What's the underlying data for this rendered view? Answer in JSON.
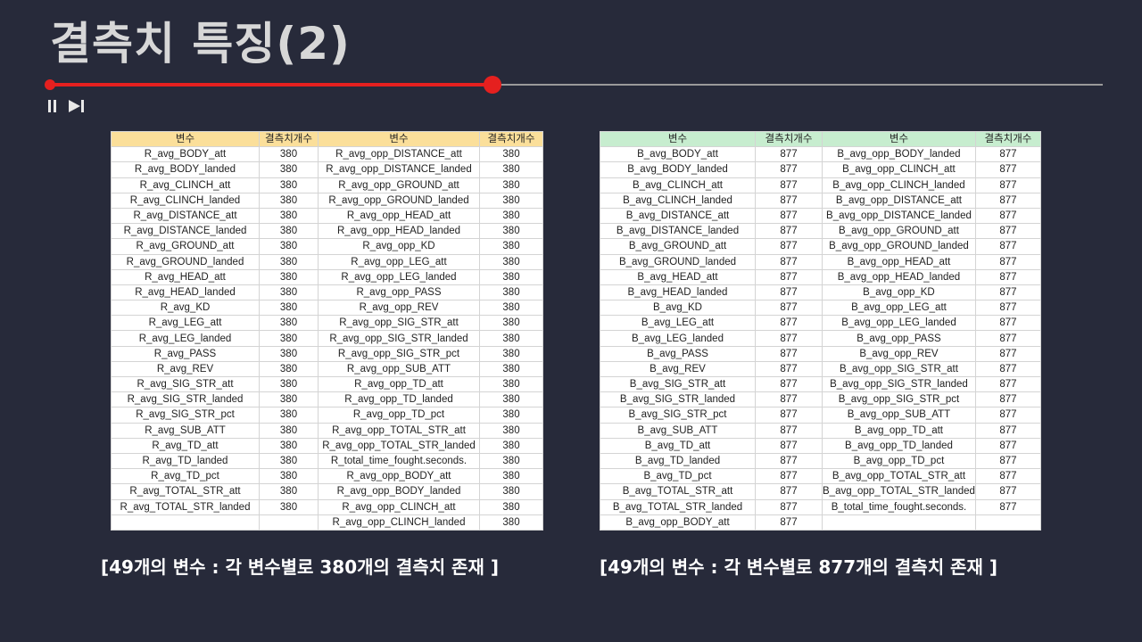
{
  "slide": {
    "title": "결측치 특징(2)",
    "playback_progress_pct": 42
  },
  "table_left": {
    "headers": [
      "변수",
      "결측치개수",
      "변수",
      "결측치개수"
    ],
    "rows": [
      [
        "R_avg_BODY_att",
        "380",
        "R_avg_opp_DISTANCE_att",
        "380"
      ],
      [
        "R_avg_BODY_landed",
        "380",
        "R_avg_opp_DISTANCE_landed",
        "380"
      ],
      [
        "R_avg_CLINCH_att",
        "380",
        "R_avg_opp_GROUND_att",
        "380"
      ],
      [
        "R_avg_CLINCH_landed",
        "380",
        "R_avg_opp_GROUND_landed",
        "380"
      ],
      [
        "R_avg_DISTANCE_att",
        "380",
        "R_avg_opp_HEAD_att",
        "380"
      ],
      [
        "R_avg_DISTANCE_landed",
        "380",
        "R_avg_opp_HEAD_landed",
        "380"
      ],
      [
        "R_avg_GROUND_att",
        "380",
        "R_avg_opp_KD",
        "380"
      ],
      [
        "R_avg_GROUND_landed",
        "380",
        "R_avg_opp_LEG_att",
        "380"
      ],
      [
        "R_avg_HEAD_att",
        "380",
        "R_avg_opp_LEG_landed",
        "380"
      ],
      [
        "R_avg_HEAD_landed",
        "380",
        "R_avg_opp_PASS",
        "380"
      ],
      [
        "R_avg_KD",
        "380",
        "R_avg_opp_REV",
        "380"
      ],
      [
        "R_avg_LEG_att",
        "380",
        "R_avg_opp_SIG_STR_att",
        "380"
      ],
      [
        "R_avg_LEG_landed",
        "380",
        "R_avg_opp_SIG_STR_landed",
        "380"
      ],
      [
        "R_avg_PASS",
        "380",
        "R_avg_opp_SIG_STR_pct",
        "380"
      ],
      [
        "R_avg_REV",
        "380",
        "R_avg_opp_SUB_ATT",
        "380"
      ],
      [
        "R_avg_SIG_STR_att",
        "380",
        "R_avg_opp_TD_att",
        "380"
      ],
      [
        "R_avg_SIG_STR_landed",
        "380",
        "R_avg_opp_TD_landed",
        "380"
      ],
      [
        "R_avg_SIG_STR_pct",
        "380",
        "R_avg_opp_TD_pct",
        "380"
      ],
      [
        "R_avg_SUB_ATT",
        "380",
        "R_avg_opp_TOTAL_STR_att",
        "380"
      ],
      [
        "R_avg_TD_att",
        "380",
        "R_avg_opp_TOTAL_STR_landed",
        "380"
      ],
      [
        "R_avg_TD_landed",
        "380",
        "R_total_time_fought.seconds.",
        "380"
      ],
      [
        "R_avg_TD_pct",
        "380",
        "R_avg_opp_BODY_att",
        "380"
      ],
      [
        "R_avg_TOTAL_STR_att",
        "380",
        "R_avg_opp_BODY_landed",
        "380"
      ],
      [
        "R_avg_TOTAL_STR_landed",
        "380",
        "R_avg_opp_CLINCH_att",
        "380"
      ],
      [
        "",
        "",
        "R_avg_opp_CLINCH_landed",
        "380"
      ]
    ],
    "caption": "[49개의 변수 : 각 변수별로 380개의 결측치 존재 ]"
  },
  "table_right": {
    "headers": [
      "변수",
      "결측치개수",
      "변수",
      "결측치개수"
    ],
    "rows": [
      [
        "B_avg_BODY_att",
        "877",
        "B_avg_opp_BODY_landed",
        "877"
      ],
      [
        "B_avg_BODY_landed",
        "877",
        "B_avg_opp_CLINCH_att",
        "877"
      ],
      [
        "B_avg_CLINCH_att",
        "877",
        "B_avg_opp_CLINCH_landed",
        "877"
      ],
      [
        "B_avg_CLINCH_landed",
        "877",
        "B_avg_opp_DISTANCE_att",
        "877"
      ],
      [
        "B_avg_DISTANCE_att",
        "877",
        "B_avg_opp_DISTANCE_landed",
        "877"
      ],
      [
        "B_avg_DISTANCE_landed",
        "877",
        "B_avg_opp_GROUND_att",
        "877"
      ],
      [
        "B_avg_GROUND_att",
        "877",
        "B_avg_opp_GROUND_landed",
        "877"
      ],
      [
        "B_avg_GROUND_landed",
        "877",
        "B_avg_opp_HEAD_att",
        "877"
      ],
      [
        "B_avg_HEAD_att",
        "877",
        "B_avg_opp_HEAD_landed",
        "877"
      ],
      [
        "B_avg_HEAD_landed",
        "877",
        "B_avg_opp_KD",
        "877"
      ],
      [
        "B_avg_KD",
        "877",
        "B_avg_opp_LEG_att",
        "877"
      ],
      [
        "B_avg_LEG_att",
        "877",
        "B_avg_opp_LEG_landed",
        "877"
      ],
      [
        "B_avg_LEG_landed",
        "877",
        "B_avg_opp_PASS",
        "877"
      ],
      [
        "B_avg_PASS",
        "877",
        "B_avg_opp_REV",
        "877"
      ],
      [
        "B_avg_REV",
        "877",
        "B_avg_opp_SIG_STR_att",
        "877"
      ],
      [
        "B_avg_SIG_STR_att",
        "877",
        "B_avg_opp_SIG_STR_landed",
        "877"
      ],
      [
        "B_avg_SIG_STR_landed",
        "877",
        "B_avg_opp_SIG_STR_pct",
        "877"
      ],
      [
        "B_avg_SIG_STR_pct",
        "877",
        "B_avg_opp_SUB_ATT",
        "877"
      ],
      [
        "B_avg_SUB_ATT",
        "877",
        "B_avg_opp_TD_att",
        "877"
      ],
      [
        "B_avg_TD_att",
        "877",
        "B_avg_opp_TD_landed",
        "877"
      ],
      [
        "B_avg_TD_landed",
        "877",
        "B_avg_opp_TD_pct",
        "877"
      ],
      [
        "B_avg_TD_pct",
        "877",
        "B_avg_opp_TOTAL_STR_att",
        "877"
      ],
      [
        "B_avg_TOTAL_STR_att",
        "877",
        "B_avg_opp_TOTAL_STR_landed",
        "877"
      ],
      [
        "B_avg_TOTAL_STR_landed",
        "877",
        "B_total_time_fought.seconds.",
        "877"
      ],
      [
        "B_avg_opp_BODY_att",
        "877",
        "",
        ""
      ]
    ],
    "caption": "[49개의 변수 : 각 변수별로 877개의 결측치 존재 ]"
  },
  "colors": {
    "background": "#272a3a",
    "progress_red": "#e5201f",
    "left_header": "#fbdf9a",
    "right_header": "#c7edcf"
  },
  "icons": [
    "pause-icon",
    "skip-next-icon"
  ]
}
